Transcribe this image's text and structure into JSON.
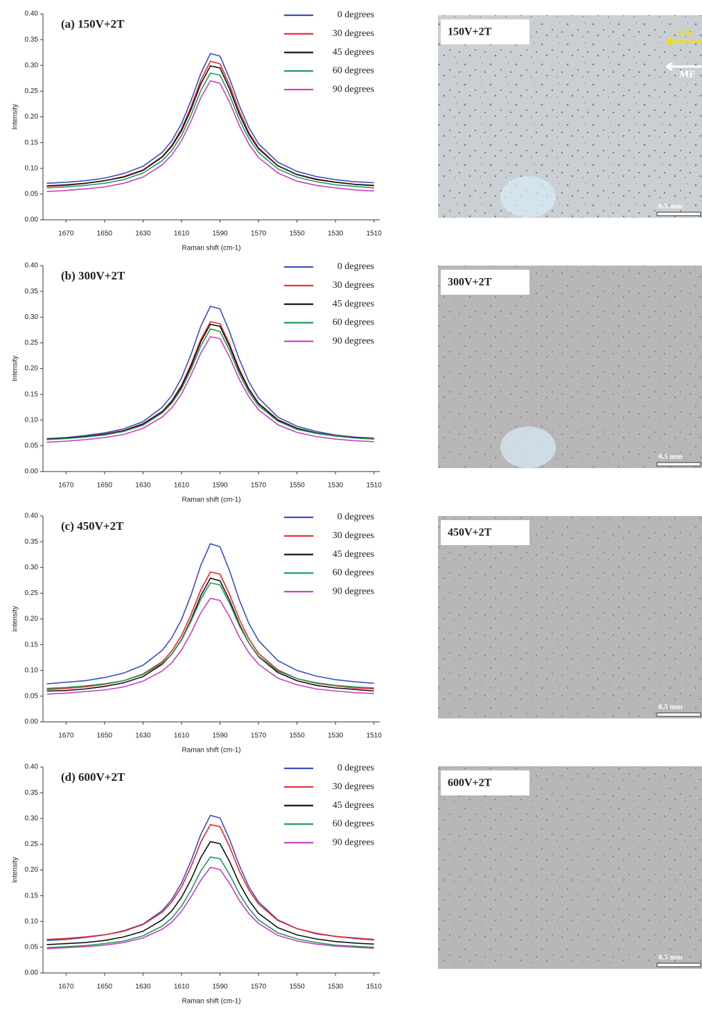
{
  "chart_data": [
    {
      "type": "line",
      "title": "(a) 150V+2T",
      "x_label": "Raman shift (cm-1)",
      "y_label": "Intensity",
      "x": [
        1680,
        1670,
        1660,
        1650,
        1640,
        1630,
        1620,
        1615,
        1610,
        1605,
        1600,
        1595,
        1590,
        1585,
        1580,
        1575,
        1570,
        1560,
        1550,
        1540,
        1530,
        1520,
        1510
      ],
      "xlim": [
        1682,
        1507
      ],
      "xticks": [
        1670,
        1650,
        1630,
        1610,
        1590,
        1570,
        1550,
        1530,
        1510
      ],
      "ylim": [
        0,
        0.4
      ],
      "yticks": [
        {
          "value": 0,
          "label": "0.00"
        },
        0.05,
        {
          "value": 0.1,
          "label": "0.10"
        },
        0.15,
        {
          "value": 0.2,
          "label": "0.20"
        },
        0.25,
        {
          "value": 0.3,
          "label": "0.30"
        },
        0.35,
        {
          "value": 0.4,
          "label": "0.40"
        }
      ],
      "series": [
        {
          "name": "0 degrees",
          "color": "#3a4fc0",
          "values": [
            0.071,
            0.073,
            0.076,
            0.081,
            0.09,
            0.104,
            0.131,
            0.154,
            0.187,
            0.232,
            0.284,
            0.323,
            0.318,
            0.274,
            0.222,
            0.179,
            0.148,
            0.112,
            0.094,
            0.084,
            0.078,
            0.074,
            0.072
          ]
        },
        {
          "name": "30 degrees",
          "color": "#e8252a",
          "values": [
            0.065,
            0.067,
            0.071,
            0.076,
            0.084,
            0.097,
            0.123,
            0.145,
            0.177,
            0.22,
            0.271,
            0.308,
            0.303,
            0.261,
            0.211,
            0.169,
            0.14,
            0.105,
            0.088,
            0.078,
            0.073,
            0.069,
            0.066
          ]
        },
        {
          "name": "45 degrees",
          "color": "#111111",
          "values": [
            0.066,
            0.068,
            0.071,
            0.076,
            0.083,
            0.096,
            0.122,
            0.143,
            0.173,
            0.215,
            0.264,
            0.299,
            0.295,
            0.254,
            0.205,
            0.166,
            0.138,
            0.105,
            0.088,
            0.079,
            0.073,
            0.069,
            0.067
          ]
        },
        {
          "name": "60 degrees",
          "color": "#1f9a5a",
          "values": [
            0.062,
            0.064,
            0.067,
            0.071,
            0.078,
            0.091,
            0.115,
            0.135,
            0.164,
            0.204,
            0.251,
            0.285,
            0.281,
            0.242,
            0.195,
            0.158,
            0.131,
            0.099,
            0.083,
            0.074,
            0.068,
            0.065,
            0.062
          ]
        },
        {
          "name": "90 degrees",
          "color": "#c83fc0",
          "values": [
            0.055,
            0.057,
            0.06,
            0.064,
            0.071,
            0.083,
            0.107,
            0.126,
            0.154,
            0.192,
            0.237,
            0.27,
            0.265,
            0.228,
            0.183,
            0.147,
            0.121,
            0.091,
            0.075,
            0.067,
            0.062,
            0.058,
            0.056
          ]
        }
      ]
    },
    {
      "type": "line",
      "title": "(b) 300V+2T",
      "x_label": "Raman shift (cm-1)",
      "y_label": "Intensity",
      "x": [
        1680,
        1670,
        1660,
        1650,
        1640,
        1630,
        1620,
        1615,
        1610,
        1605,
        1600,
        1595,
        1590,
        1585,
        1580,
        1575,
        1570,
        1560,
        1550,
        1540,
        1530,
        1520,
        1510
      ],
      "xlim": [
        1682,
        1507
      ],
      "xticks": [
        1670,
        1650,
        1630,
        1610,
        1590,
        1570,
        1550,
        1530,
        1510
      ],
      "ylim": [
        0,
        0.4
      ],
      "yticks": [
        {
          "value": 0,
          "label": "0.00"
        },
        0.05,
        {
          "value": 0.1,
          "label": "0.10"
        },
        0.15,
        {
          "value": 0.2,
          "label": "0.20"
        },
        0.25,
        {
          "value": 0.3,
          "label": "0.30"
        },
        0.35,
        {
          "value": 0.4,
          "label": "0.40"
        }
      ],
      "series": [
        {
          "name": "0 degrees",
          "color": "#3a4fc0",
          "values": [
            0.064,
            0.066,
            0.07,
            0.075,
            0.083,
            0.097,
            0.125,
            0.148,
            0.182,
            0.228,
            0.282,
            0.321,
            0.316,
            0.271,
            0.218,
            0.174,
            0.143,
            0.106,
            0.088,
            0.078,
            0.071,
            0.067,
            0.065
          ]
        },
        {
          "name": "30 degrees",
          "color": "#e8252a",
          "values": [
            0.063,
            0.065,
            0.068,
            0.073,
            0.08,
            0.093,
            0.117,
            0.138,
            0.168,
            0.209,
            0.256,
            0.291,
            0.287,
            0.247,
            0.199,
            0.161,
            0.133,
            0.101,
            0.084,
            0.075,
            0.07,
            0.066,
            0.064
          ]
        },
        {
          "name": "45 degrees",
          "color": "#111111",
          "values": [
            0.063,
            0.065,
            0.068,
            0.072,
            0.079,
            0.092,
            0.116,
            0.136,
            0.165,
            0.205,
            0.252,
            0.286,
            0.282,
            0.243,
            0.196,
            0.159,
            0.132,
            0.1,
            0.084,
            0.075,
            0.069,
            0.066,
            0.063
          ]
        },
        {
          "name": "60 degrees",
          "color": "#1f9a5a",
          "values": [
            0.062,
            0.064,
            0.067,
            0.071,
            0.078,
            0.09,
            0.114,
            0.133,
            0.161,
            0.199,
            0.244,
            0.277,
            0.272,
            0.235,
            0.19,
            0.154,
            0.128,
            0.098,
            0.082,
            0.074,
            0.069,
            0.065,
            0.063
          ]
        },
        {
          "name": "90 degrees",
          "color": "#c83fc0",
          "values": [
            0.057,
            0.059,
            0.062,
            0.066,
            0.072,
            0.084,
            0.106,
            0.124,
            0.151,
            0.188,
            0.23,
            0.262,
            0.258,
            0.222,
            0.179,
            0.145,
            0.12,
            0.091,
            0.076,
            0.068,
            0.063,
            0.06,
            0.058
          ]
        }
      ]
    },
    {
      "type": "line",
      "title": "(c) 450V+2T",
      "x_label": "Raman shift (cm-1)",
      "y_label": "Intensity",
      "x": [
        1680,
        1670,
        1660,
        1650,
        1640,
        1630,
        1620,
        1615,
        1610,
        1605,
        1600,
        1595,
        1590,
        1585,
        1580,
        1575,
        1570,
        1560,
        1550,
        1540,
        1530,
        1520,
        1510
      ],
      "xlim": [
        1682,
        1507
      ],
      "xticks": [
        1670,
        1650,
        1630,
        1610,
        1590,
        1570,
        1550,
        1530,
        1510
      ],
      "ylim": [
        0,
        0.4
      ],
      "yticks": [
        {
          "value": 0,
          "label": "0.00"
        },
        0.05,
        {
          "value": 0.1,
          "label": "0.10"
        },
        0.15,
        {
          "value": 0.2,
          "label": "0.20"
        },
        0.25,
        {
          "value": 0.3,
          "label": "0.30"
        },
        0.35,
        {
          "value": 0.4,
          "label": "0.40"
        }
      ],
      "series": [
        {
          "name": "0 degrees",
          "color": "#3a4fc0",
          "values": [
            0.074,
            0.077,
            0.08,
            0.086,
            0.095,
            0.11,
            0.139,
            0.164,
            0.199,
            0.247,
            0.304,
            0.346,
            0.34,
            0.293,
            0.237,
            0.191,
            0.158,
            0.119,
            0.1,
            0.089,
            0.082,
            0.078,
            0.075
          ]
        },
        {
          "name": "30 degrees",
          "color": "#e8252a",
          "values": [
            0.063,
            0.065,
            0.068,
            0.073,
            0.08,
            0.093,
            0.117,
            0.138,
            0.168,
            0.209,
            0.256,
            0.291,
            0.287,
            0.247,
            0.199,
            0.161,
            0.133,
            0.101,
            0.084,
            0.075,
            0.07,
            0.066,
            0.064
          ]
        },
        {
          "name": "45 degrees",
          "color": "#111111",
          "values": [
            0.06,
            0.061,
            0.064,
            0.069,
            0.076,
            0.088,
            0.112,
            0.132,
            0.16,
            0.199,
            0.245,
            0.279,
            0.274,
            0.236,
            0.19,
            0.153,
            0.127,
            0.096,
            0.08,
            0.071,
            0.066,
            0.063,
            0.06
          ]
        },
        {
          "name": "60 degrees",
          "color": "#1f9a5a",
          "values": [
            0.065,
            0.067,
            0.07,
            0.074,
            0.08,
            0.092,
            0.114,
            0.132,
            0.159,
            0.196,
            0.238,
            0.27,
            0.266,
            0.23,
            0.187,
            0.153,
            0.128,
            0.099,
            0.084,
            0.076,
            0.071,
            0.068,
            0.066
          ]
        },
        {
          "name": "90 degrees",
          "color": "#c83fc0",
          "values": [
            0.054,
            0.056,
            0.059,
            0.062,
            0.068,
            0.079,
            0.099,
            0.115,
            0.14,
            0.173,
            0.212,
            0.24,
            0.236,
            0.204,
            0.165,
            0.134,
            0.112,
            0.085,
            0.072,
            0.064,
            0.06,
            0.057,
            0.055
          ]
        }
      ]
    },
    {
      "type": "line",
      "title": "(d) 600V+2T",
      "x_label": "Raman shift (cm-1)",
      "y_label": "Intensity",
      "x": [
        1680,
        1670,
        1660,
        1650,
        1640,
        1630,
        1620,
        1615,
        1610,
        1605,
        1600,
        1595,
        1590,
        1585,
        1580,
        1575,
        1570,
        1560,
        1550,
        1540,
        1530,
        1520,
        1510
      ],
      "xlim": [
        1682,
        1507
      ],
      "xticks": [
        1670,
        1650,
        1630,
        1610,
        1590,
        1570,
        1550,
        1530,
        1510
      ],
      "ylim": [
        0,
        0.4
      ],
      "yticks": [
        {
          "value": 0,
          "label": "0.00"
        },
        0.05,
        {
          "value": 0.1,
          "label": "0.10"
        },
        0.15,
        {
          "value": 0.2,
          "label": "0.20"
        },
        0.25,
        {
          "value": 0.3,
          "label": "0.30"
        },
        0.35,
        {
          "value": 0.4,
          "label": "0.40"
        }
      ],
      "series": [
        {
          "name": "0 degrees",
          "color": "#3a4fc0",
          "values": [
            0.063,
            0.065,
            0.069,
            0.074,
            0.082,
            0.095,
            0.121,
            0.143,
            0.175,
            0.218,
            0.269,
            0.306,
            0.301,
            0.259,
            0.209,
            0.167,
            0.138,
            0.103,
            0.086,
            0.076,
            0.071,
            0.067,
            0.064
          ]
        },
        {
          "name": "30 degrees",
          "color": "#e8252a",
          "values": [
            0.065,
            0.067,
            0.07,
            0.074,
            0.081,
            0.094,
            0.118,
            0.138,
            0.167,
            0.207,
            0.254,
            0.288,
            0.284,
            0.245,
            0.198,
            0.161,
            0.134,
            0.102,
            0.086,
            0.077,
            0.071,
            0.068,
            0.065
          ]
        },
        {
          "name": "45 degrees",
          "color": "#111111",
          "values": [
            0.055,
            0.057,
            0.059,
            0.063,
            0.07,
            0.081,
            0.103,
            0.121,
            0.147,
            0.182,
            0.224,
            0.255,
            0.251,
            0.216,
            0.174,
            0.141,
            0.116,
            0.088,
            0.074,
            0.066,
            0.061,
            0.058,
            0.056
          ]
        },
        {
          "name": "60 degrees",
          "color": "#1f9a5a",
          "values": [
            0.049,
            0.051,
            0.053,
            0.057,
            0.062,
            0.072,
            0.091,
            0.107,
            0.13,
            0.161,
            0.198,
            0.225,
            0.222,
            0.191,
            0.154,
            0.125,
            0.103,
            0.078,
            0.066,
            0.059,
            0.054,
            0.052,
            0.05
          ]
        },
        {
          "name": "90 degrees",
          "color": "#c83fc0",
          "values": [
            0.047,
            0.049,
            0.051,
            0.054,
            0.059,
            0.068,
            0.085,
            0.099,
            0.12,
            0.148,
            0.18,
            0.205,
            0.201,
            0.174,
            0.141,
            0.115,
            0.096,
            0.073,
            0.062,
            0.056,
            0.052,
            0.05,
            0.048
          ]
        }
      ]
    }
  ],
  "images": [
    {
      "label": "150V+2T",
      "scale": "0.5 mm",
      "arrows": [
        "EF",
        "MF"
      ]
    },
    {
      "label": "300V+2T",
      "scale": "0.5 mm"
    },
    {
      "label": "450V+2T",
      "scale": "0.5 mm"
    },
    {
      "label": "600V+2T",
      "scale": "0.5 mm"
    }
  ]
}
